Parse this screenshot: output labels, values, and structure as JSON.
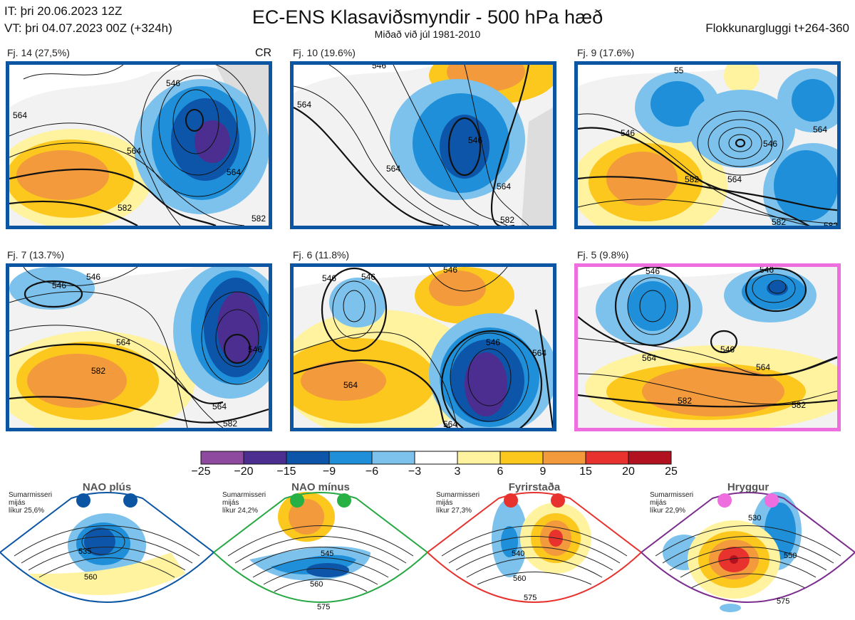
{
  "header": {
    "it": "IT: þri 20.06.2023 12Z",
    "vt": "VT: þri 04.07.2023 00Z  (+324h)",
    "title": "EC-ENS Klasaviðsmyndir - 500 hPa hæð",
    "subtitle": "Miðað við júl 1981-2010",
    "window": "Flokkunargluggi t+264-360"
  },
  "cr_label": "CR",
  "panels": [
    {
      "label": "Fj. 14 (27,5%)",
      "frame_color": "#0b55a3",
      "contours": [
        "564",
        "564",
        "582",
        "546",
        "564",
        "582"
      ]
    },
    {
      "label": "Fj. 10 (19.6%)",
      "frame_color": "#0b55a3",
      "contours": [
        "564",
        "546",
        "564",
        "564",
        "546",
        "582"
      ]
    },
    {
      "label": "Fj. 9 (17.6%)",
      "frame_color": "#0b55a3",
      "contours": [
        "55",
        "546",
        "564",
        "582",
        "546",
        "564",
        "582",
        "582"
      ]
    },
    {
      "label": "Fj. 7 (13.7%)",
      "frame_color": "#0b55a3",
      "contours": [
        "546",
        "546",
        "564",
        "582",
        "564",
        "546",
        "582"
      ]
    },
    {
      "label": "Fj. 6 (11.8%)",
      "frame_color": "#0b55a3",
      "contours": [
        "546",
        "546",
        "546",
        "564",
        "564",
        "546",
        "564"
      ]
    },
    {
      "label": "Fj. 5 (9.8%)",
      "frame_color": "#ee6ee0",
      "contours": [
        "546",
        "546",
        "546",
        "564",
        "564",
        "582",
        "582"
      ]
    }
  ],
  "colorbar": {
    "ticks": [
      "−25",
      "−20",
      "−15",
      "−9",
      "−6",
      "−3",
      "3",
      "6",
      "9",
      "15",
      "20",
      "25"
    ],
    "colors": [
      "#8e4a9e",
      "#4b2e90",
      "#0d55a8",
      "#1e8fd8",
      "#7cc2ec",
      "#ffffff",
      "#fff3a0",
      "#fcc81e",
      "#f29a3c",
      "#e8322e",
      "#b2121f"
    ]
  },
  "regimes": [
    {
      "title": "NAO plús",
      "note": [
        "Sumarmisseri",
        "mijás",
        "líkur 25,6%"
      ],
      "edge_color": "#0b55a3",
      "dot_color": "#0b55a3",
      "contours": [
        "535",
        "560"
      ]
    },
    {
      "title": "NAO mínus",
      "note": [
        "Sumarmisseri",
        "mijás",
        "líkur 24,2%"
      ],
      "edge_color": "#27a844",
      "dot_color": "#27b044",
      "contours": [
        "545",
        "560",
        "575"
      ]
    },
    {
      "title": "Fyrirstaða",
      "note": [
        "Sumarmisseri",
        "mijás",
        "líkur 27,3%"
      ],
      "edge_color": "#e8322e",
      "dot_color": "#e8322e",
      "contours": [
        "540",
        "560",
        "575"
      ]
    },
    {
      "title": "Hryggur",
      "note": [
        "Sumarmisseri",
        "mijás",
        "líkur 22,9%"
      ],
      "edge_color": "#7b2d8e",
      "dot_color": "#ee6ee0",
      "contours": [
        "530",
        "550",
        "575"
      ]
    }
  ]
}
